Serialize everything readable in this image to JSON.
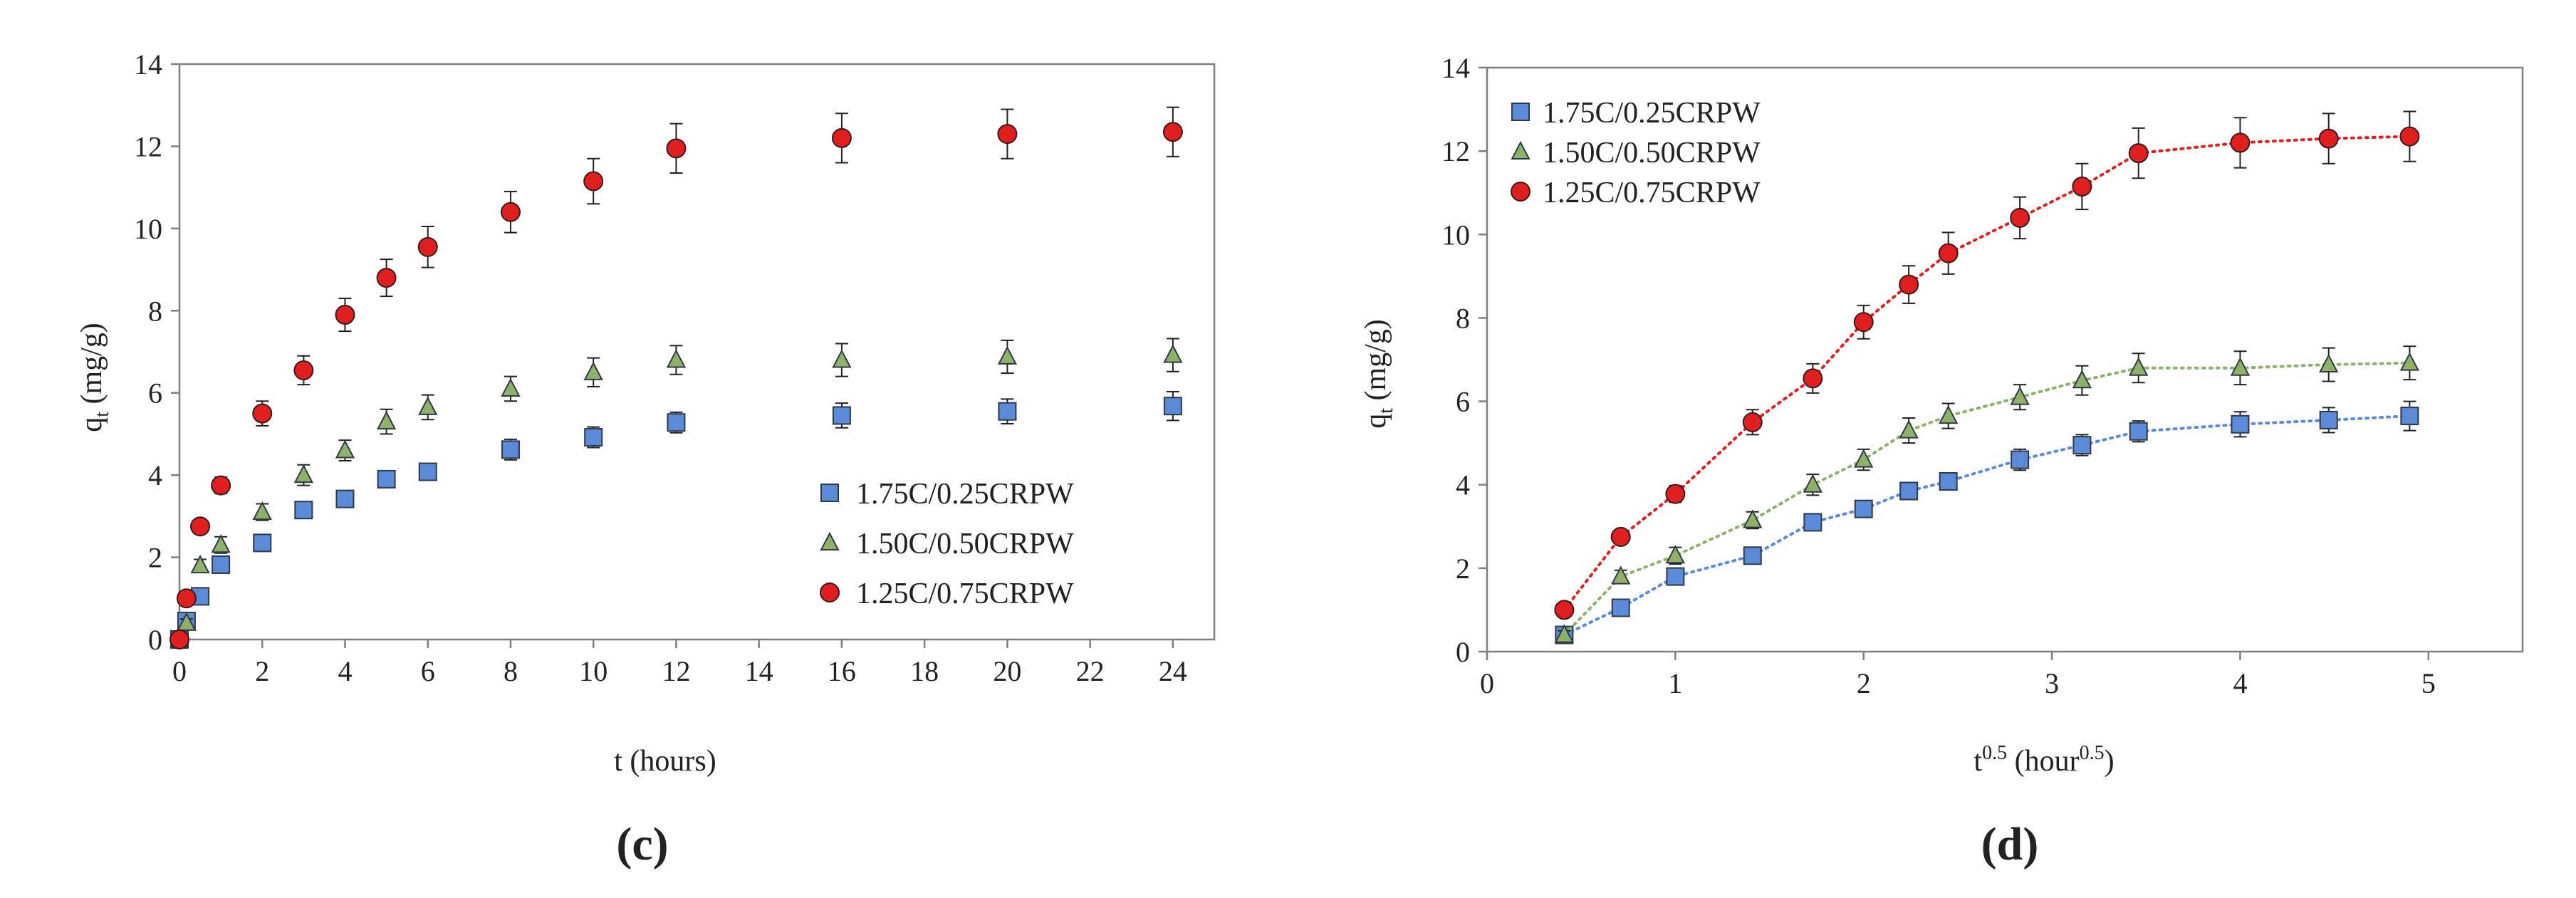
{
  "colors": {
    "series_1": "#5b8ad8",
    "series_2": "#8fb26a",
    "series_3": "#e02020",
    "axis": "#7f7f7f",
    "errorbar": "#222222"
  },
  "chart_data": [
    {
      "type": "scatter",
      "panel_label": "(c)",
      "xlabel_main": "t (hours)",
      "ylabel_main": "q",
      "ylabel_sub": "t",
      "ylabel_rest": " (mg/g)",
      "xlim": [
        0,
        25
      ],
      "ylim": [
        0,
        14
      ],
      "x_ticks": [
        0,
        2,
        4,
        6,
        8,
        10,
        12,
        14,
        16,
        18,
        20,
        22,
        24
      ],
      "y_ticks": [
        0,
        2,
        4,
        6,
        8,
        10,
        12,
        14
      ],
      "grid": false,
      "legend_position": "bottom-right",
      "series": [
        {
          "name": "1.75C/0.25CRPW",
          "marker": "square",
          "x": [
            0,
            0.17,
            0.5,
            1,
            2,
            3,
            4,
            5,
            6,
            8,
            10,
            12,
            16,
            20,
            24
          ],
          "y": [
            0,
            0.45,
            1.05,
            1.82,
            2.35,
            3.15,
            3.42,
            3.9,
            4.08,
            4.62,
            4.92,
            5.28,
            5.45,
            5.55,
            5.68
          ],
          "err": [
            0,
            0.1,
            0.15,
            0.15,
            0.2,
            0.2,
            0.2,
            0.2,
            0.2,
            0.25,
            0.25,
            0.25,
            0.3,
            0.3,
            0.35
          ]
        },
        {
          "name": "1.50C/0.50CRPW",
          "marker": "triangle",
          "x": [
            0,
            0.17,
            0.5,
            1,
            2,
            3,
            4,
            5,
            6,
            8,
            10,
            12,
            16,
            20,
            24
          ],
          "y": [
            0,
            0.4,
            1.8,
            2.3,
            3.1,
            4.0,
            4.6,
            5.3,
            5.65,
            6.1,
            6.5,
            6.8,
            6.8,
            6.88,
            6.92
          ],
          "err": [
            0,
            0.1,
            0.15,
            0.2,
            0.2,
            0.25,
            0.25,
            0.3,
            0.3,
            0.3,
            0.35,
            0.35,
            0.4,
            0.4,
            0.4
          ]
        },
        {
          "name": "1.25C/0.75CRPW",
          "marker": "circle",
          "x": [
            0,
            0.17,
            0.5,
            1,
            2,
            3,
            4,
            5,
            6,
            8,
            10,
            12,
            16,
            20,
            24
          ],
          "y": [
            0,
            1.0,
            2.75,
            3.75,
            5.5,
            6.55,
            7.9,
            8.8,
            9.55,
            10.4,
            11.15,
            11.95,
            12.2,
            12.3,
            12.35
          ],
          "err": [
            0,
            0.1,
            0.15,
            0.2,
            0.3,
            0.35,
            0.4,
            0.45,
            0.5,
            0.5,
            0.55,
            0.6,
            0.6,
            0.6,
            0.6
          ]
        }
      ]
    },
    {
      "type": "scatter",
      "panel_label": "(d)",
      "xlabel_main": "t",
      "xlabel_sup": "0.5",
      "xlabel_rest": " (hour",
      "xlabel_sup2": "0.5",
      "xlabel_end": ")",
      "ylabel_main": "q",
      "ylabel_sub": "t",
      "ylabel_rest": " (mg/g)",
      "xlim": [
        0,
        5.5
      ],
      "ylim": [
        0,
        14
      ],
      "x_ticks": [
        0,
        1,
        2,
        3,
        4,
        5
      ],
      "y_ticks": [
        0,
        2,
        4,
        6,
        8,
        10,
        12,
        14
      ],
      "grid": false,
      "legend_position": "top-left",
      "series": [
        {
          "name": "1.75C/0.25CRPW",
          "marker": "square",
          "x": [
            0.41,
            0.71,
            1.0,
            1.41,
            1.73,
            2.0,
            2.24,
            2.45,
            2.83,
            3.16,
            3.46,
            4.0,
            4.47,
            4.9
          ],
          "y": [
            0.4,
            1.05,
            1.8,
            2.3,
            3.1,
            3.42,
            3.85,
            4.08,
            4.6,
            4.95,
            5.28,
            5.45,
            5.55,
            5.65
          ],
          "err": [
            0.1,
            0.1,
            0.15,
            0.15,
            0.2,
            0.2,
            0.2,
            0.2,
            0.25,
            0.25,
            0.25,
            0.3,
            0.3,
            0.35
          ],
          "fit_segments": [
            [
              0,
              10
            ],
            [
              10,
              13
            ]
          ]
        },
        {
          "name": "1.50C/0.50CRPW",
          "marker": "triangle",
          "x": [
            0.41,
            0.71,
            1.0,
            1.41,
            1.73,
            2.0,
            2.24,
            2.45,
            2.83,
            3.16,
            3.46,
            4.0,
            4.47,
            4.9
          ],
          "y": [
            0.4,
            1.8,
            2.3,
            3.15,
            4.0,
            4.6,
            5.3,
            5.65,
            6.1,
            6.5,
            6.8,
            6.8,
            6.88,
            6.92
          ],
          "err": [
            0.1,
            0.15,
            0.2,
            0.2,
            0.25,
            0.25,
            0.3,
            0.3,
            0.3,
            0.35,
            0.35,
            0.4,
            0.4,
            0.4
          ],
          "fit_segments": [
            [
              0,
              10
            ],
            [
              10,
              13
            ]
          ]
        },
        {
          "name": "1.25C/0.75CRPW",
          "marker": "circle",
          "x": [
            0.41,
            0.71,
            1.0,
            1.41,
            1.73,
            2.0,
            2.24,
            2.45,
            2.83,
            3.16,
            3.46,
            4.0,
            4.47,
            4.9
          ],
          "y": [
            1.0,
            2.75,
            3.78,
            5.5,
            6.55,
            7.9,
            8.8,
            9.55,
            10.4,
            11.15,
            11.95,
            12.2,
            12.3,
            12.35
          ],
          "err": [
            0.1,
            0.15,
            0.2,
            0.3,
            0.35,
            0.4,
            0.45,
            0.5,
            0.5,
            0.55,
            0.6,
            0.6,
            0.6,
            0.6
          ],
          "fit_segments": [
            [
              0,
              10
            ],
            [
              10,
              13
            ]
          ]
        }
      ]
    }
  ]
}
